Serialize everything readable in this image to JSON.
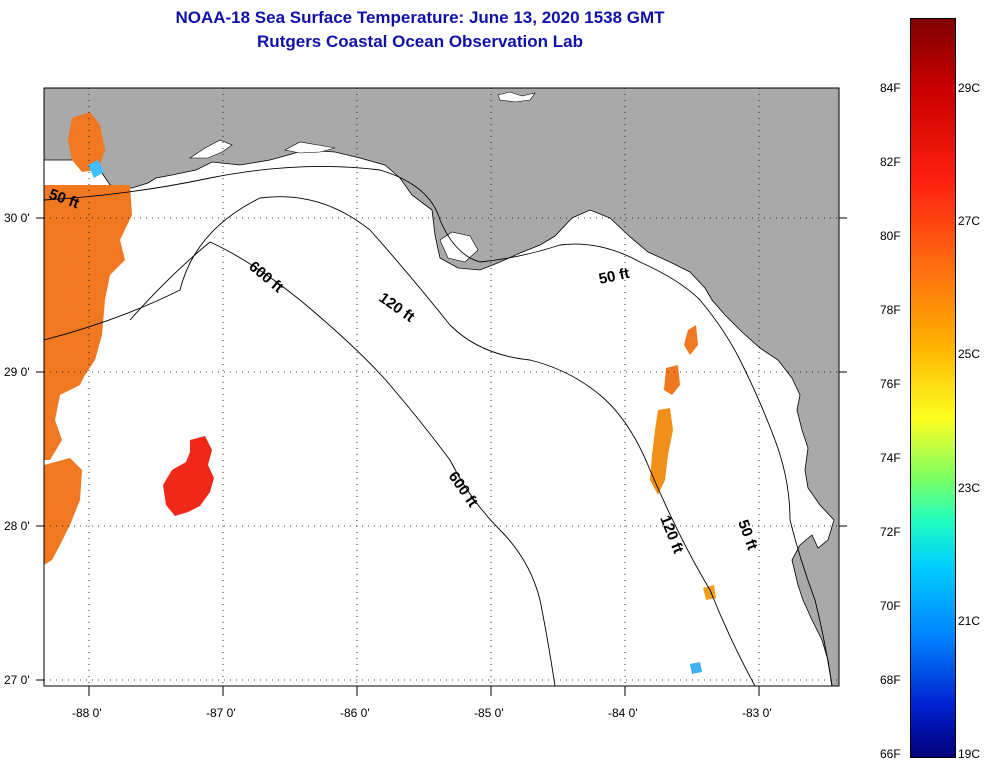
{
  "title": "NOAA-18 Sea Surface Temperature:  June 13, 2020 1538 GMT",
  "subtitle": "Rutgers Coastal Ocean Observation Lab",
  "axes": {
    "lon_labels": [
      "-88 0'",
      "-87 0'",
      "-86 0'",
      "-85 0'",
      "-84 0'",
      "-83 0'"
    ],
    "lat_labels": [
      "30 0'",
      "29 0'",
      "28 0'",
      "27 0'"
    ]
  },
  "contours": {
    "fifty_ft_1": "50 ft",
    "fifty_ft_2": "50 ft",
    "fifty_ft_3": "50 ft",
    "onetwenty_1": "120 ft",
    "onetwenty_2": "120 ft",
    "sixhundred_1": "600 ft",
    "sixhundred_2": "600 ft"
  },
  "colorbar": {
    "fahrenheit": [
      "84F",
      "82F",
      "80F",
      "78F",
      "76F",
      "74F",
      "72F",
      "70F",
      "68F",
      "66F"
    ],
    "celsius": [
      "29C",
      "27C",
      "25C",
      "23C",
      "21C",
      "19C"
    ]
  },
  "colors": {
    "land": "#a9a9a9",
    "title": "#1010a8",
    "warm_patch": "#f07820",
    "hot_patch": "#f02818"
  }
}
